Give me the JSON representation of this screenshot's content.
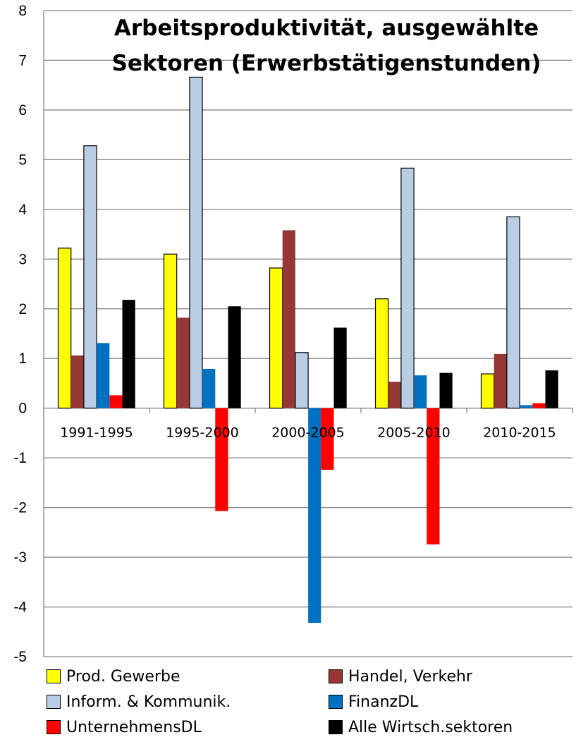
{
  "chart_data": {
    "type": "bar",
    "title": [
      "Arbeitsproduktivität, ausgewählte",
      "Sektoren (Erwerbstätigenstunden)"
    ],
    "categories": [
      "1991-1995",
      "1995-2000",
      "2000-2005",
      "2005-2010",
      "2010-2015"
    ],
    "ylim": [
      -5,
      8
    ],
    "yticks": [
      8,
      7,
      6,
      5,
      4,
      3,
      2,
      1,
      0,
      -1,
      -2,
      -3,
      -4,
      -5
    ],
    "grid": true,
    "legend_position": "bottom",
    "series": [
      {
        "name": "Prod. Gewerbe",
        "color": "#FFFF00",
        "values": [
          3.22,
          3.1,
          2.82,
          2.2,
          0.69
        ]
      },
      {
        "name": "Handel, Verkehr",
        "color": "#953735",
        "values": [
          1.06,
          1.82,
          3.58,
          0.53,
          1.09
        ]
      },
      {
        "name": "Inform. & Kommunik.",
        "color": "#B9CDE5",
        "values": [
          5.28,
          6.66,
          1.12,
          4.83,
          3.85
        ]
      },
      {
        "name": "FinanzDL",
        "color": "#0070C0",
        "values": [
          1.31,
          0.79,
          -4.32,
          0.66,
          0.06
        ]
      },
      {
        "name": "UnternehmensDL",
        "color": "#FF0000",
        "values": [
          0.26,
          -2.07,
          -1.24,
          -2.74,
          0.1
        ]
      },
      {
        "name": "Alle Wirtsch.sektoren",
        "color": "#000000",
        "values": [
          2.18,
          2.05,
          1.62,
          0.71,
          0.76
        ]
      }
    ]
  }
}
